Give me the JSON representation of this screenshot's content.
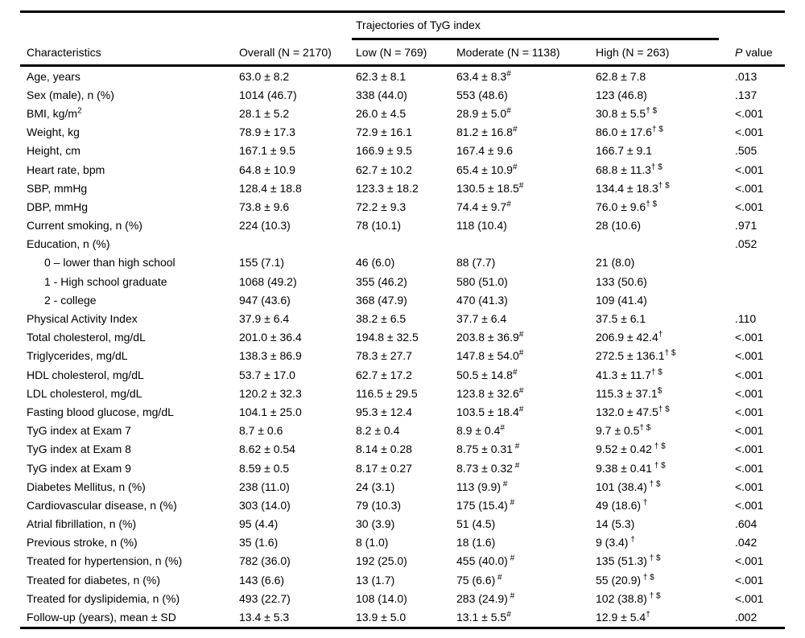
{
  "table": {
    "spanner": "Trajectories of TyG index",
    "header": {
      "characteristics": "Characteristics",
      "overall": "Overall (N = 2170)",
      "low": "Low (N = 769)",
      "moderate": "Moderate (N = 1138)",
      "high": "High (N = 263)",
      "p_italic": "P",
      "p_rest": " value"
    },
    "rows": [
      {
        "label": "Age, years",
        "overall": "63.0 ± 8.2",
        "low": "62.3 ± 8.1",
        "moderate": "63.4 ± 8.3",
        "moderate_sup": "#",
        "high": "62.8 ± 7.8",
        "high_sup": "",
        "p": ".013"
      },
      {
        "label": "Sex (male), n (%)",
        "overall": "1014 (46.7)",
        "low": "338 (44.0)",
        "moderate": "553 (48.6)",
        "moderate_sup": "",
        "high": "123 (46.8)",
        "high_sup": "",
        "p": ".137"
      },
      {
        "label": "BMI, kg/m",
        "label_sup": "2",
        "overall": "28.1 ± 5.2",
        "low": "26.0 ± 4.5",
        "moderate": "28.9 ± 5.0",
        "moderate_sup": "#",
        "high": "30.8 ± 5.5",
        "high_sup": "† $",
        "p": "<.001"
      },
      {
        "label": "Weight, kg",
        "overall": "78.9 ± 17.3",
        "low": "72.9 ± 16.1",
        "moderate": "81.2 ± 16.8",
        "moderate_sup": "#",
        "high": "86.0 ± 17.6",
        "high_sup": "† $",
        "p": "<.001"
      },
      {
        "label": "Height, cm",
        "overall": "167.1 ± 9.5",
        "low": "166.9 ± 9.5",
        "moderate": "167.4 ± 9.6",
        "moderate_sup": "",
        "high": "166.7 ± 9.1",
        "high_sup": "",
        "p": ".505"
      },
      {
        "label": "Heart rate, bpm",
        "overall": "64.8 ± 10.9",
        "low": "62.7 ± 10.2",
        "moderate": "65.4 ± 10.9",
        "moderate_sup": "#",
        "high": "68.8 ± 11.3",
        "high_sup": "† $",
        "p": "<.001"
      },
      {
        "label": "SBP, mmHg",
        "overall": "128.4 ± 18.8",
        "low": "123.3 ± 18.2",
        "moderate": "130.5 ± 18.5",
        "moderate_sup": "#",
        "high": "134.4 ± 18.3",
        "high_sup": "† $",
        "p": "<.001"
      },
      {
        "label": "DBP, mmHg",
        "overall": "73.8 ± 9.6",
        "low": "72.2 ± 9.3",
        "moderate": "74.4 ± 9.7",
        "moderate_sup": "#",
        "high": "76.0 ± 9.6",
        "high_sup": "† $",
        "p": "<.001"
      },
      {
        "label": "Current smoking, n (%)",
        "overall": "224 (10.3)",
        "low": "78 (10.1)",
        "moderate": "118 (10.4)",
        "moderate_sup": "",
        "high": "28 (10.6)",
        "high_sup": "",
        "p": ".971"
      },
      {
        "label": "Education, n (%)",
        "overall": "",
        "low": "",
        "moderate": "",
        "moderate_sup": "",
        "high": "",
        "high_sup": "",
        "p": ".052"
      },
      {
        "label": "0 – lower than high school",
        "indent": true,
        "overall": "155 (7.1)",
        "low": "46 (6.0)",
        "moderate": "88 (7.7)",
        "moderate_sup": "",
        "high": "21 (8.0)",
        "high_sup": "",
        "p": ""
      },
      {
        "label": "1 - High school graduate",
        "indent": true,
        "overall": "1068 (49.2)",
        "low": "355 (46.2)",
        "moderate": "580 (51.0)",
        "moderate_sup": "",
        "high": "133 (50.6)",
        "high_sup": "",
        "p": ""
      },
      {
        "label": "2 - college",
        "indent": true,
        "overall": "947 (43.6)",
        "low": "368 (47.9)",
        "moderate": "470 (41.3)",
        "moderate_sup": "",
        "high": "109 (41.4)",
        "high_sup": "",
        "p": ""
      },
      {
        "label": "Physical Activity Index",
        "overall": "37.9 ± 6.4",
        "low": "38.2 ± 6.5",
        "moderate": "37.7 ± 6.4",
        "moderate_sup": "",
        "high": "37.5 ± 6.1",
        "high_sup": "",
        "p": ".110"
      },
      {
        "label": "Total cholesterol, mg/dL",
        "overall": "201.0 ± 36.4",
        "low": "194.8 ± 32.5",
        "moderate": "203.8 ± 36.9",
        "moderate_sup": "#",
        "high": "206.9 ± 42.4",
        "high_sup": "†",
        "p": "<.001"
      },
      {
        "label": "Triglycerides, mg/dL",
        "overall": "138.3 ± 86.9",
        "low": "78.3 ± 27.7",
        "moderate": "147.8 ± 54.0",
        "moderate_sup": "#",
        "high": "272.5 ± 136.1",
        "high_sup": "† $",
        "p": "<.001"
      },
      {
        "label": "HDL cholesterol, mg/dL",
        "overall": "53.7 ± 17.0",
        "low": "62.7 ± 17.2",
        "moderate": "50.5 ± 14.8",
        "moderate_sup": "#",
        "high": "41.3 ± 11.7",
        "high_sup": "† $",
        "p": "<.001"
      },
      {
        "label": "LDL cholesterol, mg/dL",
        "overall": "120.2 ± 32.3",
        "low": "116.5 ± 29.5",
        "moderate": "123.8 ± 32.6",
        "moderate_sup": "#",
        "high": "115.3 ± 37.1",
        "high_sup": "$",
        "p": "<.001"
      },
      {
        "label": "Fasting blood glucose, mg/dL",
        "overall": "104.1 ± 25.0",
        "low": "95.3 ± 12.4",
        "moderate": "103.5 ± 18.4",
        "moderate_sup": "#",
        "high": "132.0 ± 47.5",
        "high_sup": "† $",
        "p": "<.001"
      },
      {
        "label": "TyG index at Exam 7",
        "overall": "8.7 ± 0.6",
        "low": "8.2 ± 0.4",
        "moderate": "8.9 ± 0.4",
        "moderate_sup": "#",
        "high": "9.7 ± 0.5",
        "high_sup": "† $",
        "p": "<.001"
      },
      {
        "label": "TyG index at Exam 8",
        "overall": "8.62 ± 0.54",
        "low": "8.14 ± 0.28",
        "moderate": "8.75 ± 0.31",
        "moderate_sup": " #",
        "high": "9.52 ± 0.42",
        "high_sup": " † $",
        "p": "<.001"
      },
      {
        "label": "TyG index at Exam 9",
        "overall": "8.59 ± 0.5",
        "low": "8.17 ± 0.27",
        "moderate": "8.73 ± 0.32",
        "moderate_sup": " #",
        "high": "9.38 ± 0.41",
        "high_sup": " † $",
        "p": "<.001"
      },
      {
        "label": "Diabetes Mellitus, n (%)",
        "overall": "238 (11.0)",
        "low": "24 (3.1)",
        "moderate": "113 (9.9)",
        "moderate_sup": " #",
        "high": "101 (38.4)",
        "high_sup": " † $",
        "p": "<.001"
      },
      {
        "label": "Cardiovascular disease, n (%)",
        "overall": "303 (14.0)",
        "low": "79 (10.3)",
        "moderate": "175 (15.4)",
        "moderate_sup": " #",
        "high": "49 (18.6)",
        "high_sup": " †",
        "p": "<.001"
      },
      {
        "label": "Atrial fibrillation, n (%)",
        "overall": "95 (4.4)",
        "low": "30 (3.9)",
        "moderate": "51 (4.5)",
        "moderate_sup": "",
        "high": "14 (5.3)",
        "high_sup": "",
        "p": ".604"
      },
      {
        "label": "Previous stroke, n (%)",
        "overall": "35 (1.6)",
        "low": "8 (1.0)",
        "moderate": "18 (1.6)",
        "moderate_sup": "",
        "high": "9 (3.4)",
        "high_sup": " †",
        "p": ".042"
      },
      {
        "label": "Treated for hypertension, n (%)",
        "overall": "782 (36.0)",
        "low": "192 (25.0)",
        "moderate": "455 (40.0)",
        "moderate_sup": " #",
        "high": "135 (51.3)",
        "high_sup": " † $",
        "p": "<.001"
      },
      {
        "label": "Treated for diabetes, n (%)",
        "overall": "143 (6.6)",
        "low": "13 (1.7)",
        "moderate": "75 (6.6)",
        "moderate_sup": " #",
        "high": "55 (20.9)",
        "high_sup": " † $",
        "p": "<.001"
      },
      {
        "label": "Treated for dyslipidemia, n (%)",
        "overall": "493 (22.7)",
        "low": "108 (14.0)",
        "moderate": "283 (24.9)",
        "moderate_sup": " #",
        "high": "102 (38.8)",
        "high_sup": " † $",
        "p": "<.001"
      },
      {
        "label": "Follow-up (years), mean ± SD",
        "overall": "13.4 ± 5.3",
        "low": "13.9 ± 5.0",
        "moderate": "13.1 ± 5.5",
        "moderate_sup": "#",
        "high": "12.9 ± 5.4",
        "high_sup": "†",
        "p": ".002"
      }
    ],
    "colors": {
      "text": "#000000",
      "rule": "#000000",
      "background": "#ffffff"
    }
  }
}
